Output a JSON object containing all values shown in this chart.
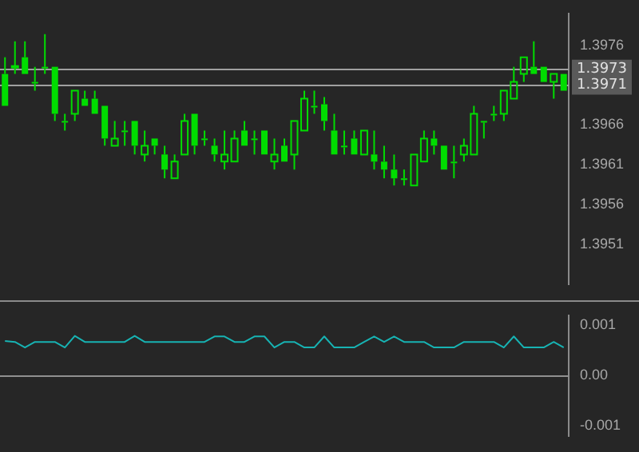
{
  "chart_data": [
    {
      "type": "candlestick",
      "color": "#00dd00",
      "categories": [
        null,
        null,
        null,
        null,
        null,
        null,
        null,
        null,
        null,
        null,
        null,
        null,
        null,
        null,
        null,
        null,
        null,
        null,
        null,
        null,
        null,
        null,
        null,
        null,
        null,
        null,
        null,
        null,
        null,
        null,
        null,
        null,
        null,
        null,
        null,
        null,
        null,
        null,
        null,
        null,
        null,
        null,
        null,
        null,
        null,
        null,
        null,
        null,
        null,
        null,
        null,
        null,
        null,
        null,
        null,
        null,
        null
      ],
      "ohlc": [
        [
          1.39724,
          1.39745,
          1.39684,
          1.39684
        ],
        [
          1.39733,
          1.39765,
          1.39724,
          1.39734
        ],
        [
          1.39745,
          1.39765,
          1.39724,
          1.39724
        ],
        [
          1.39714,
          1.39733,
          1.39703,
          1.39714
        ],
        [
          1.39733,
          1.39774,
          1.39724,
          1.39733
        ],
        [
          1.39733,
          1.39733,
          1.39665,
          1.39674
        ],
        [
          1.39665,
          1.39674,
          1.39653,
          1.39665
        ],
        [
          1.39674,
          1.39703,
          1.39665,
          1.39703
        ],
        [
          1.39693,
          1.39703,
          1.39684,
          1.39684
        ],
        [
          1.39693,
          1.39703,
          1.39674,
          1.39674
        ],
        [
          1.39684,
          1.39684,
          1.39634,
          1.39643
        ],
        [
          1.39634,
          1.39665,
          1.39634,
          1.39643
        ],
        [
          1.39653,
          1.39665,
          1.39634,
          1.39653
        ],
        [
          1.39665,
          1.39665,
          1.39623,
          1.39634
        ],
        [
          1.39623,
          1.39653,
          1.39614,
          1.39634
        ],
        [
          1.39643,
          1.39643,
          1.39623,
          1.39634
        ],
        [
          1.39623,
          1.39634,
          1.39593,
          1.39604
        ],
        [
          1.39593,
          1.39623,
          1.39593,
          1.39614
        ],
        [
          1.39623,
          1.39674,
          1.39623,
          1.39665
        ],
        [
          1.39674,
          1.39674,
          1.39623,
          1.39634
        ],
        [
          1.39643,
          1.39653,
          1.39634,
          1.39643
        ],
        [
          1.39634,
          1.39643,
          1.39614,
          1.39623
        ],
        [
          1.39614,
          1.39653,
          1.39604,
          1.39623
        ],
        [
          1.39614,
          1.39653,
          1.39614,
          1.39643
        ],
        [
          1.39653,
          1.39665,
          1.39634,
          1.39634
        ],
        [
          1.39643,
          1.39653,
          1.39623,
          1.39643
        ],
        [
          1.39653,
          1.39653,
          1.39623,
          1.39623
        ],
        [
          1.39614,
          1.39643,
          1.39604,
          1.39623
        ],
        [
          1.39634,
          1.39643,
          1.39614,
          1.39614
        ],
        [
          1.39623,
          1.39665,
          1.39604,
          1.39665
        ],
        [
          1.39653,
          1.39703,
          1.39653,
          1.39693
        ],
        [
          1.39684,
          1.39703,
          1.39674,
          1.39684
        ],
        [
          1.39686,
          1.39695,
          1.39653,
          1.39665
        ],
        [
          1.39653,
          1.39674,
          1.39623,
          1.39623
        ],
        [
          1.39634,
          1.39653,
          1.39623,
          1.39634
        ],
        [
          1.39643,
          1.39653,
          1.39623,
          1.39623
        ],
        [
          1.39623,
          1.39653,
          1.39623,
          1.39653
        ],
        [
          1.39623,
          1.39653,
          1.39604,
          1.39614
        ],
        [
          1.39614,
          1.39634,
          1.39593,
          1.39604
        ],
        [
          1.39604,
          1.39623,
          1.39584,
          1.39593
        ],
        [
          1.39593,
          1.39604,
          1.39584,
          1.39593
        ],
        [
          1.39584,
          1.39623,
          1.39584,
          1.39623
        ],
        [
          1.39614,
          1.39653,
          1.39614,
          1.39643
        ],
        [
          1.39643,
          1.39653,
          1.39623,
          1.39634
        ],
        [
          1.39634,
          1.39634,
          1.39604,
          1.39604
        ],
        [
          1.39614,
          1.39634,
          1.39593,
          1.39614
        ],
        [
          1.39623,
          1.39643,
          1.39614,
          1.39634
        ],
        [
          1.39623,
          1.39684,
          1.39623,
          1.39674
        ],
        [
          1.39665,
          1.39665,
          1.39643,
          1.39665
        ],
        [
          1.39674,
          1.39684,
          1.39665,
          1.39674
        ],
        [
          1.39674,
          1.39703,
          1.39665,
          1.39703
        ],
        [
          1.39693,
          1.39733,
          1.39693,
          1.39714
        ],
        [
          1.39724,
          1.39745,
          1.39714,
          1.39745
        ],
        [
          1.39733,
          1.39765,
          1.39724,
          1.39724
        ],
        [
          1.39733,
          1.39733,
          1.39714,
          1.39714
        ],
        [
          1.39714,
          1.39724,
          1.39693,
          1.39724
        ],
        [
          1.39724,
          1.39724,
          1.39703,
          1.39703
        ]
      ],
      "ylim": [
        1.3946,
        1.398
      ],
      "yticks": [
        1.3951,
        1.3956,
        1.3961,
        1.3966,
        1.3976
      ],
      "grid": false,
      "legend": false,
      "tick_labels": "y",
      "ref_lines": [
        {
          "axis": "y",
          "value": 1.3973,
          "label": "1.3973",
          "color": "#a0a0a0"
        },
        {
          "axis": "y",
          "value": 1.3971,
          "label": "1.3971",
          "color": "#a0a0a0"
        }
      ]
    },
    {
      "type": "line",
      "categories": [
        null,
        null,
        null,
        null,
        null,
        null,
        null,
        null,
        null,
        null,
        null,
        null,
        null,
        null,
        null,
        null,
        null,
        null,
        null,
        null,
        null,
        null,
        null,
        null,
        null,
        null,
        null,
        null,
        null,
        null,
        null,
        null,
        null,
        null,
        null,
        null,
        null,
        null,
        null,
        null,
        null,
        null,
        null,
        null,
        null,
        null,
        null,
        null,
        null,
        null,
        null,
        null,
        null,
        null,
        null,
        null,
        null
      ],
      "series": [
        {
          "color": "#17b3b3",
          "values": [
            0.00069,
            0.00067,
            0.00056,
            0.00067,
            0.00067,
            0.00067,
            0.00056,
            0.00079,
            0.00067,
            0.00067,
            0.00067,
            0.00067,
            0.00067,
            0.00079,
            0.00067,
            0.00067,
            0.00067,
            0.00067,
            0.00067,
            0.00067,
            0.00067,
            0.00078,
            0.00078,
            0.00067,
            0.00067,
            0.00078,
            0.00078,
            0.00056,
            0.00067,
            0.00067,
            0.00056,
            0.00056,
            0.00078,
            0.00056,
            0.00056,
            0.00056,
            0.00067,
            0.00078,
            0.00067,
            0.00078,
            0.00067,
            0.00067,
            0.00067,
            0.00056,
            0.00056,
            0.00056,
            0.00067,
            0.00067,
            0.00067,
            0.00067,
            0.00056,
            0.00078,
            0.00056,
            0.00056,
            0.00056,
            0.00067,
            0.00056
          ]
        }
      ],
      "ylim": [
        -0.0012,
        0.0012
      ],
      "yticks": [
        {
          "value": 0.001,
          "label": "0.001"
        },
        {
          "value": 0,
          "label": "0.00"
        },
        {
          "value": -0.001,
          "label": "-0.001"
        }
      ],
      "grid": false,
      "legend": false,
      "marker": "none",
      "line_style": "solid",
      "tick_labels": "y",
      "ref_lines": [
        {
          "axis": "y",
          "value": 0,
          "color": "#909090"
        }
      ]
    }
  ]
}
